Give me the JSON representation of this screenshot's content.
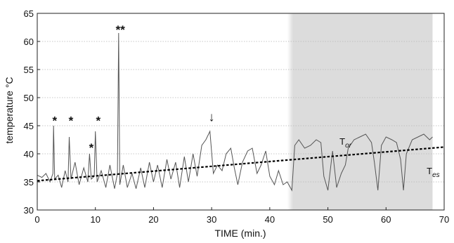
{
  "chart_data": {
    "type": "line",
    "xlabel": "TIME (min.)",
    "ylabel": "temperature °C",
    "xlim": [
      0,
      70
    ],
    "ylim": [
      30,
      65
    ],
    "x_ticks": [
      "0",
      "10",
      "20",
      "30",
      "40",
      "50",
      "60",
      "70"
    ],
    "y_ticks": [
      "30",
      "35",
      "40",
      "45",
      "50",
      "55",
      "60",
      "65"
    ],
    "grid": "horizontal dotted",
    "shaded_region": [
      44,
      68
    ],
    "series": [
      {
        "name": "Tor",
        "style": "solid",
        "points": [
          [
            0,
            36.2
          ],
          [
            0.8,
            35.8
          ],
          [
            1.5,
            36.5
          ],
          [
            2.2,
            35.0
          ],
          [
            2.7,
            36.5
          ],
          [
            2.8,
            45.0
          ],
          [
            3.0,
            35.5
          ],
          [
            3.6,
            36.2
          ],
          [
            4.2,
            34.0
          ],
          [
            4.8,
            37.0
          ],
          [
            5.3,
            35.0
          ],
          [
            5.5,
            43.0
          ],
          [
            5.8,
            35.5
          ],
          [
            6.5,
            38.5
          ],
          [
            7.2,
            34.5
          ],
          [
            8.0,
            37.5
          ],
          [
            8.7,
            35.0
          ],
          [
            9.0,
            40.0
          ],
          [
            9.3,
            35.5
          ],
          [
            9.8,
            36.0
          ],
          [
            10.0,
            44.0
          ],
          [
            10.3,
            35.0
          ],
          [
            11.0,
            37.0
          ],
          [
            11.8,
            34.0
          ],
          [
            12.5,
            38.0
          ],
          [
            13.3,
            33.8
          ],
          [
            13.8,
            36.5
          ],
          [
            14.0,
            61.5
          ],
          [
            14.2,
            34.5
          ],
          [
            14.8,
            38.0
          ],
          [
            15.5,
            34.0
          ],
          [
            16.3,
            36.5
          ],
          [
            17.0,
            33.8
          ],
          [
            17.8,
            37.5
          ],
          [
            18.5,
            34.0
          ],
          [
            19.3,
            38.5
          ],
          [
            20.0,
            35.0
          ],
          [
            20.7,
            38.0
          ],
          [
            21.5,
            34.0
          ],
          [
            22.3,
            39.0
          ],
          [
            23.0,
            35.5
          ],
          [
            23.8,
            38.5
          ],
          [
            24.5,
            34.0
          ],
          [
            25.3,
            39.5
          ],
          [
            26.0,
            35.0
          ],
          [
            26.8,
            40.0
          ],
          [
            27.5,
            36.0
          ],
          [
            28.3,
            41.5
          ],
          [
            29.0,
            42.5
          ],
          [
            29.7,
            44.0
          ],
          [
            30.3,
            36.5
          ],
          [
            31.0,
            38.0
          ],
          [
            31.8,
            37.0
          ],
          [
            32.5,
            40.0
          ],
          [
            33.3,
            41.0
          ],
          [
            33.9,
            37.5
          ],
          [
            34.5,
            34.5
          ],
          [
            35.3,
            38.5
          ],
          [
            36.2,
            40.5
          ],
          [
            37.0,
            41.0
          ],
          [
            37.8,
            36.5
          ],
          [
            38.5,
            38.0
          ],
          [
            39.3,
            40.5
          ],
          [
            40.0,
            36.0
          ],
          [
            40.8,
            34.5
          ],
          [
            41.5,
            37.0
          ],
          [
            42.3,
            34.5
          ],
          [
            43.0,
            35.0
          ],
          [
            43.8,
            33.5
          ],
          [
            44.3,
            41.5
          ],
          [
            45.0,
            42.5
          ],
          [
            46.0,
            41.0
          ],
          [
            47.0,
            41.5
          ],
          [
            48.0,
            42.5
          ],
          [
            48.8,
            42.0
          ],
          [
            49.3,
            36.0
          ],
          [
            50.0,
            33.5
          ],
          [
            50.8,
            40.5
          ],
          [
            51.5,
            34.0
          ],
          [
            52.3,
            36.5
          ],
          [
            53.0,
            38.0
          ],
          [
            53.5,
            41.0
          ],
          [
            54.5,
            42.5
          ],
          [
            55.5,
            43.0
          ],
          [
            56.5,
            43.5
          ],
          [
            57.5,
            42.0
          ],
          [
            58.0,
            38.5
          ],
          [
            58.6,
            33.5
          ],
          [
            59.2,
            41.5
          ],
          [
            60.0,
            43.0
          ],
          [
            61.0,
            42.5
          ],
          [
            61.8,
            42.0
          ],
          [
            62.5,
            39.0
          ],
          [
            63.0,
            33.5
          ],
          [
            63.5,
            40.0
          ],
          [
            64.5,
            42.5
          ],
          [
            65.5,
            43.0
          ],
          [
            66.5,
            43.5
          ],
          [
            67.5,
            42.5
          ],
          [
            68.0,
            43.0
          ]
        ]
      },
      {
        "name": "Tes",
        "style": "dashed",
        "points": [
          [
            0,
            35.2
          ],
          [
            70,
            41.2
          ]
        ]
      }
    ],
    "annotations": [
      {
        "text": "*",
        "x": 3.0,
        "y": 46.3
      },
      {
        "text": "*",
        "x": 5.8,
        "y": 46.3
      },
      {
        "text": "*",
        "x": 9.3,
        "y": 41.5
      },
      {
        "text": "*",
        "x": 10.5,
        "y": 46.3
      },
      {
        "text": "**",
        "x": 14.3,
        "y": 62.5
      },
      {
        "text": "↓",
        "x": 30.0,
        "y": 45.8
      },
      {
        "text": "Tor",
        "x": 52.0,
        "y": 41.6
      },
      {
        "text": "Tes",
        "x": 67.0,
        "y": 36.4
      }
    ]
  }
}
